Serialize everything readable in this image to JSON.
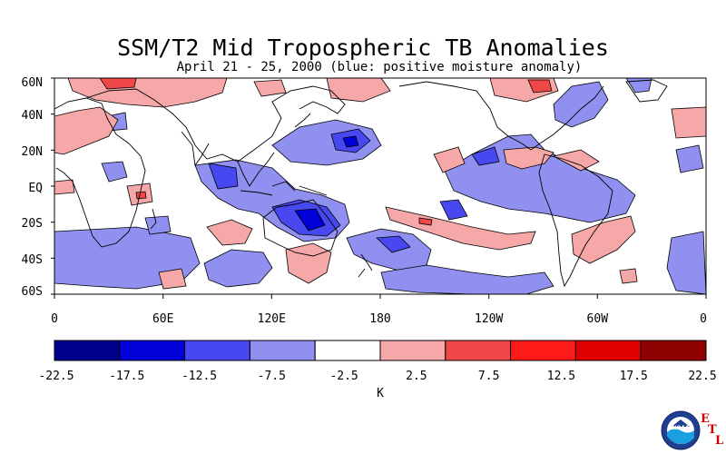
{
  "title": "SSM/T2 Mid Tropospheric TB Anomalies",
  "subtitle": "April 21 - 25, 2000 (blue: positive moisture anomaly)",
  "map": {
    "lat_labels": [
      "60N",
      "40N",
      "20N",
      "EQ",
      "20S",
      "40S",
      "60S"
    ],
    "lon_labels": [
      "0",
      "60E",
      "120E",
      "180",
      "120W",
      "60W",
      "0"
    ],
    "land_color": "#ffffff",
    "coast_color": "#000000"
  },
  "colorbar": {
    "unit": "K",
    "ticks": [
      "-22.5",
      "-17.5",
      "-12.5",
      "-7.5",
      "-2.5",
      "2.5",
      "7.5",
      "12.5",
      "17.5",
      "22.5"
    ],
    "colors": [
      "#00008f",
      "#0000d8",
      "#4848f0",
      "#9090f0",
      "#ffffff",
      "#f6a8a8",
      "#f04848",
      "#ff1a1a",
      "#e00000",
      "#8f0000"
    ]
  },
  "logo": {
    "name": "NOAA",
    "letters": [
      "E",
      "T",
      "L"
    ]
  }
}
